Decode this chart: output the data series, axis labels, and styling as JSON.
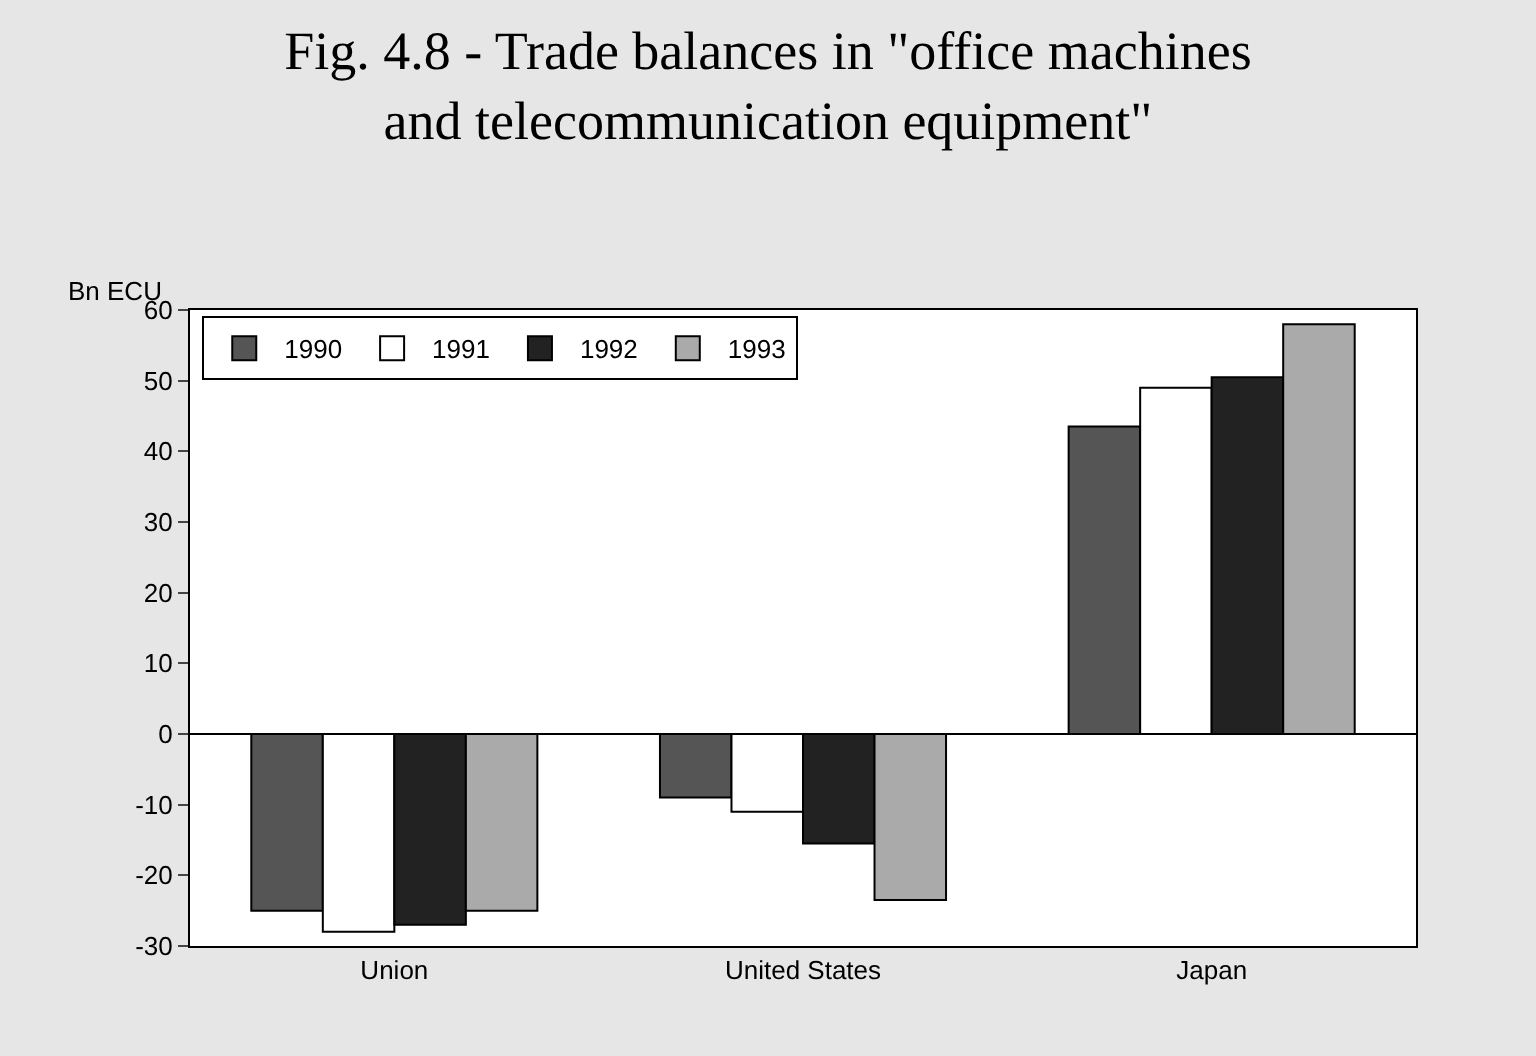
{
  "chart_data": {
    "type": "bar",
    "title": "Fig. 4.8 - Trade balances in \"office machines and telecommunication equipment\"",
    "ylabel": "Bn ECU",
    "categories": [
      "Union",
      "United States",
      "Japan"
    ],
    "series": [
      {
        "name": "1990",
        "color": "#555555",
        "values": [
          -25,
          -9,
          43.5
        ]
      },
      {
        "name": "1991",
        "color": "#ffffff",
        "values": [
          -28,
          -11,
          49
        ]
      },
      {
        "name": "1992",
        "color": "#222222",
        "values": [
          -27,
          -15.5,
          50.5
        ]
      },
      {
        "name": "1993",
        "color": "#aaaaaa",
        "values": [
          -25,
          -23.5,
          58
        ]
      }
    ],
    "ylim": [
      -30,
      60
    ],
    "yticks": [
      -30,
      -20,
      -10,
      0,
      10,
      20,
      30,
      40,
      50,
      60
    ],
    "ref_lines": [
      {
        "axis": "y",
        "value": 0,
        "color": "#000000"
      }
    ],
    "legend": "top left"
  }
}
